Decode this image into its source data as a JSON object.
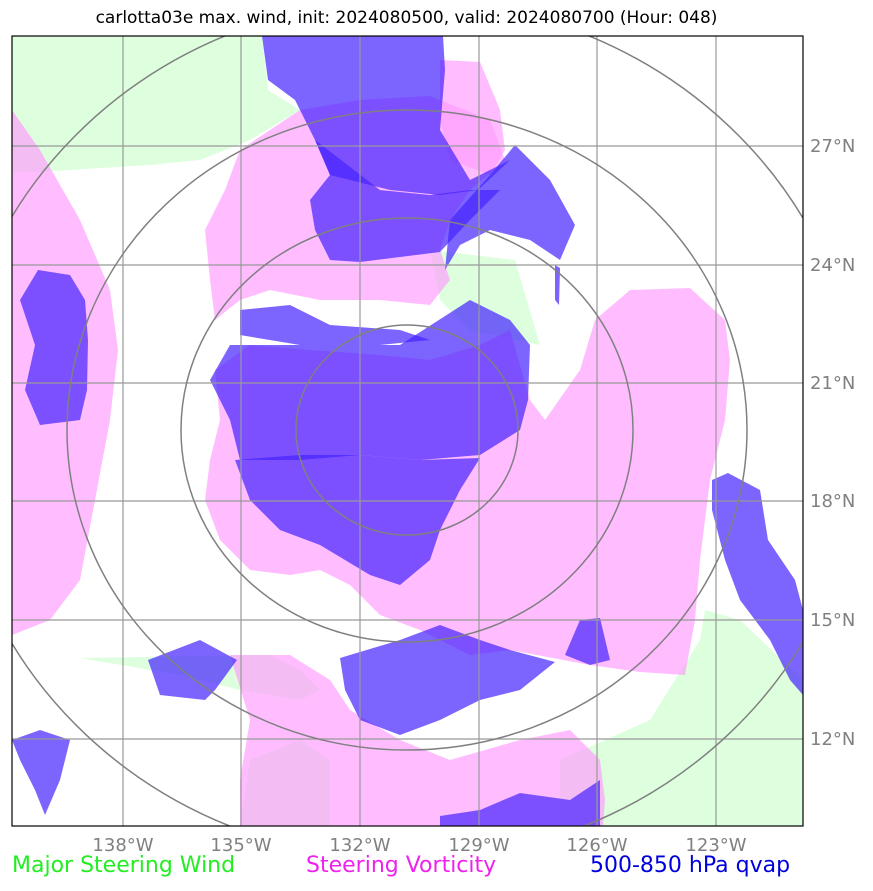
{
  "title": "carlotta03e max. wind, init: 2024080500, valid: 2024080700 (Hour: 048)",
  "colors": {
    "steering_wind": "#ddffdd",
    "steering_vorticity": "#ff99ff",
    "qvap": "#5555ff",
    "grid": "#999999",
    "rings": "#808080"
  },
  "map": {
    "lon_labels": [
      "138°W",
      "135°W",
      "132°W",
      "129°W",
      "126°W",
      "123°W"
    ],
    "lat_labels": [
      "27°N",
      "24°N",
      "21°N",
      "18°N",
      "15°N",
      "12°N"
    ]
  },
  "legend": {
    "wind": "Major Steering Wind",
    "vorticity": "Steering Vorticity",
    "qvap": "500-850 hPa qvap"
  }
}
